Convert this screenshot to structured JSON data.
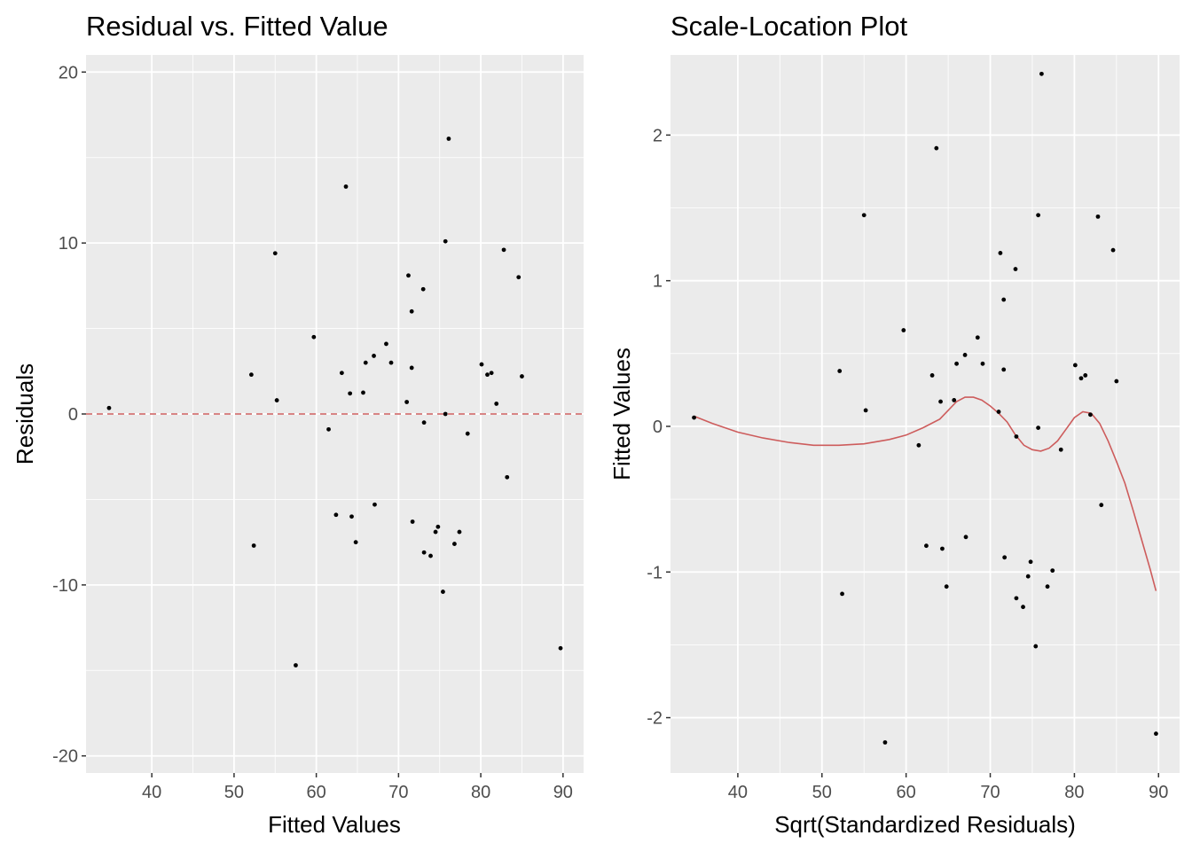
{
  "chart_data": [
    {
      "type": "scatter",
      "title": "Residual vs. Fitted Value",
      "xlabel": "Fitted Values",
      "ylabel": "Residuals",
      "xlim": [
        32,
        92.5
      ],
      "ylim": [
        -21,
        21
      ],
      "x_ticks": [
        40,
        50,
        60,
        70,
        80,
        90
      ],
      "x_tick_labels": [
        "40",
        "50",
        "60",
        "70",
        "80",
        "90"
      ],
      "y_ticks": [
        -20,
        -10,
        0,
        10,
        20
      ],
      "y_tick_labels": [
        "-20",
        "-10",
        "0",
        "10",
        "20"
      ],
      "grid": true,
      "reference_line": {
        "y": 0,
        "style": "dashed",
        "color": "#cd5c5c"
      },
      "point_color": "#000000",
      "points": [
        {
          "x": 34.8,
          "y": 0.35
        },
        {
          "x": 52.1,
          "y": 2.3
        },
        {
          "x": 52.4,
          "y": -7.7
        },
        {
          "x": 55.0,
          "y": 9.4
        },
        {
          "x": 55.2,
          "y": 0.8
        },
        {
          "x": 57.5,
          "y": -14.7
        },
        {
          "x": 59.7,
          "y": 4.5
        },
        {
          "x": 61.5,
          "y": -0.9
        },
        {
          "x": 62.4,
          "y": -5.9
        },
        {
          "x": 63.1,
          "y": 2.4
        },
        {
          "x": 63.6,
          "y": 13.3
        },
        {
          "x": 64.1,
          "y": 1.2
        },
        {
          "x": 64.3,
          "y": -6.0
        },
        {
          "x": 64.8,
          "y": -7.5
        },
        {
          "x": 65.7,
          "y": 1.25
        },
        {
          "x": 66.0,
          "y": 3.0
        },
        {
          "x": 67.0,
          "y": 3.4
        },
        {
          "x": 67.1,
          "y": -5.3
        },
        {
          "x": 68.5,
          "y": 4.1
        },
        {
          "x": 69.1,
          "y": 3.0
        },
        {
          "x": 71.0,
          "y": 0.7
        },
        {
          "x": 71.2,
          "y": 8.1
        },
        {
          "x": 71.6,
          "y": 6.0
        },
        {
          "x": 71.6,
          "y": 2.7
        },
        {
          "x": 71.7,
          "y": -6.3
        },
        {
          "x": 73.0,
          "y": 7.3
        },
        {
          "x": 73.1,
          "y": -0.5
        },
        {
          "x": 73.1,
          "y": -8.1
        },
        {
          "x": 73.9,
          "y": -8.3
        },
        {
          "x": 74.5,
          "y": -6.9
        },
        {
          "x": 74.8,
          "y": -6.6
        },
        {
          "x": 75.4,
          "y": -10.4
        },
        {
          "x": 75.7,
          "y": 0.0
        },
        {
          "x": 75.7,
          "y": 10.1
        },
        {
          "x": 76.1,
          "y": 16.1
        },
        {
          "x": 76.8,
          "y": -7.6
        },
        {
          "x": 77.4,
          "y": -6.9
        },
        {
          "x": 78.4,
          "y": -1.15
        },
        {
          "x": 80.1,
          "y": 2.9
        },
        {
          "x": 80.8,
          "y": 2.3
        },
        {
          "x": 81.3,
          "y": 2.4
        },
        {
          "x": 81.9,
          "y": 0.6
        },
        {
          "x": 82.8,
          "y": 9.6
        },
        {
          "x": 83.2,
          "y": -3.7
        },
        {
          "x": 84.6,
          "y": 8.0
        },
        {
          "x": 85.0,
          "y": 2.2
        },
        {
          "x": 89.7,
          "y": -13.7
        }
      ]
    },
    {
      "type": "scatter",
      "title": "Scale-Location Plot",
      "xlabel": "Sqrt(Standardized Residuals)",
      "ylabel": "Fitted Values",
      "xlim": [
        32,
        92.5
      ],
      "ylim": [
        -2.38,
        2.55
      ],
      "x_ticks": [
        40,
        50,
        60,
        70,
        80,
        90
      ],
      "x_tick_labels": [
        "40",
        "50",
        "60",
        "70",
        "80",
        "90"
      ],
      "y_ticks": [
        -2,
        -1,
        0,
        1,
        2
      ],
      "y_tick_labels": [
        "-2",
        "-1",
        "0",
        "1",
        "2"
      ],
      "grid": true,
      "point_color": "#000000",
      "smooth_color": "#cd5c5c",
      "points": [
        {
          "x": 34.8,
          "y": 0.06
        },
        {
          "x": 52.1,
          "y": 0.38
        },
        {
          "x": 52.4,
          "y": -1.15
        },
        {
          "x": 55.0,
          "y": 1.45
        },
        {
          "x": 55.2,
          "y": 0.11
        },
        {
          "x": 57.5,
          "y": -2.17
        },
        {
          "x": 59.7,
          "y": 0.66
        },
        {
          "x": 61.5,
          "y": -0.13
        },
        {
          "x": 62.4,
          "y": -0.82
        },
        {
          "x": 63.1,
          "y": 0.35
        },
        {
          "x": 63.6,
          "y": 1.91
        },
        {
          "x": 64.1,
          "y": 0.17
        },
        {
          "x": 64.3,
          "y": -0.84
        },
        {
          "x": 64.8,
          "y": -1.1
        },
        {
          "x": 65.7,
          "y": 0.18
        },
        {
          "x": 66.0,
          "y": 0.43
        },
        {
          "x": 67.0,
          "y": 0.49
        },
        {
          "x": 67.1,
          "y": -0.76
        },
        {
          "x": 68.5,
          "y": 0.61
        },
        {
          "x": 69.1,
          "y": 0.43
        },
        {
          "x": 71.0,
          "y": 0.1
        },
        {
          "x": 71.2,
          "y": 1.19
        },
        {
          "x": 71.6,
          "y": 0.87
        },
        {
          "x": 71.6,
          "y": 0.39
        },
        {
          "x": 71.7,
          "y": -0.9
        },
        {
          "x": 73.0,
          "y": 1.08
        },
        {
          "x": 73.1,
          "y": -0.07
        },
        {
          "x": 73.1,
          "y": -1.18
        },
        {
          "x": 73.9,
          "y": -1.24
        },
        {
          "x": 74.5,
          "y": -1.03
        },
        {
          "x": 74.8,
          "y": -0.93
        },
        {
          "x": 75.4,
          "y": -1.51
        },
        {
          "x": 75.7,
          "y": -0.01
        },
        {
          "x": 75.7,
          "y": 1.45
        },
        {
          "x": 76.1,
          "y": 2.42
        },
        {
          "x": 76.8,
          "y": -1.1
        },
        {
          "x": 77.4,
          "y": -0.99
        },
        {
          "x": 78.4,
          "y": -0.16
        },
        {
          "x": 80.1,
          "y": 0.42
        },
        {
          "x": 80.8,
          "y": 0.33
        },
        {
          "x": 81.3,
          "y": 0.35
        },
        {
          "x": 81.9,
          "y": 0.08
        },
        {
          "x": 82.8,
          "y": 1.44
        },
        {
          "x": 83.2,
          "y": -0.54
        },
        {
          "x": 84.6,
          "y": 1.21
        },
        {
          "x": 85.0,
          "y": 0.31
        },
        {
          "x": 89.7,
          "y": -2.11
        }
      ],
      "smooth_line": [
        {
          "x": 34.8,
          "y": 0.07
        },
        {
          "x": 37.0,
          "y": 0.02
        },
        {
          "x": 40.0,
          "y": -0.04
        },
        {
          "x": 43.0,
          "y": -0.08
        },
        {
          "x": 46.0,
          "y": -0.11
        },
        {
          "x": 49.0,
          "y": -0.13
        },
        {
          "x": 52.0,
          "y": -0.13
        },
        {
          "x": 55.0,
          "y": -0.12
        },
        {
          "x": 58.0,
          "y": -0.09
        },
        {
          "x": 60.0,
          "y": -0.06
        },
        {
          "x": 62.0,
          "y": -0.01
        },
        {
          "x": 64.0,
          "y": 0.05
        },
        {
          "x": 65.0,
          "y": 0.11
        },
        {
          "x": 66.0,
          "y": 0.17
        },
        {
          "x": 67.0,
          "y": 0.2
        },
        {
          "x": 68.0,
          "y": 0.2
        },
        {
          "x": 69.0,
          "y": 0.18
        },
        {
          "x": 70.0,
          "y": 0.14
        },
        {
          "x": 71.0,
          "y": 0.09
        },
        {
          "x": 72.0,
          "y": 0.03
        },
        {
          "x": 73.0,
          "y": -0.06
        },
        {
          "x": 74.0,
          "y": -0.13
        },
        {
          "x": 75.0,
          "y": -0.16
        },
        {
          "x": 76.0,
          "y": -0.17
        },
        {
          "x": 77.0,
          "y": -0.15
        },
        {
          "x": 78.0,
          "y": -0.1
        },
        {
          "x": 79.0,
          "y": -0.02
        },
        {
          "x": 80.0,
          "y": 0.06
        },
        {
          "x": 81.0,
          "y": 0.1
        },
        {
          "x": 82.0,
          "y": 0.09
        },
        {
          "x": 83.0,
          "y": 0.02
        },
        {
          "x": 84.0,
          "y": -0.1
        },
        {
          "x": 85.0,
          "y": -0.24
        },
        {
          "x": 86.0,
          "y": -0.39
        },
        {
          "x": 87.0,
          "y": -0.58
        },
        {
          "x": 88.0,
          "y": -0.78
        },
        {
          "x": 89.0,
          "y": -0.98
        },
        {
          "x": 89.7,
          "y": -1.13
        }
      ]
    }
  ]
}
